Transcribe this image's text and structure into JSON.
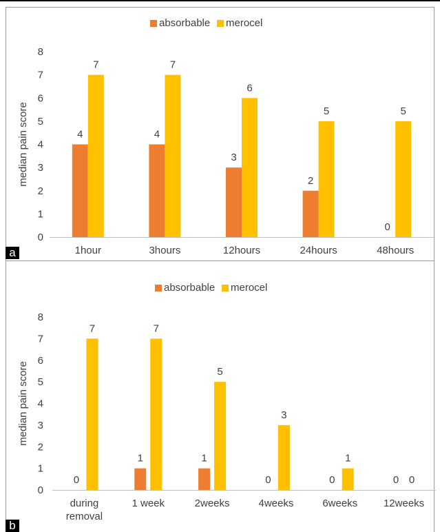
{
  "colors": {
    "absorbable": "#ED7D31",
    "merocel": "#FFC000",
    "axis_text": "#404040",
    "axis_line": "#bfbfbf"
  },
  "chart_data": [
    {
      "type": "bar",
      "panel_label": "a",
      "ylabel": "median pain score",
      "xlabel": "",
      "ylim": [
        0,
        8
      ],
      "yticks": [
        0,
        1,
        2,
        3,
        4,
        5,
        6,
        7,
        8
      ],
      "ytick_labels": [
        "0",
        "1",
        "2",
        "3",
        "4",
        "5",
        "6",
        "7",
        "8"
      ],
      "grid": false,
      "legend_position": "top",
      "categories": [
        "1hour",
        "3hours",
        "12hours",
        "24hours",
        "48hours"
      ],
      "series": [
        {
          "name": "absorbable",
          "values": [
            4,
            4,
            3,
            2,
            0
          ]
        },
        {
          "name": "merocel",
          "values": [
            7,
            7,
            6,
            5,
            5
          ]
        }
      ],
      "data_labels": [
        {
          "series": "absorbable",
          "labels": [
            "4",
            "4",
            "3",
            "2",
            "0"
          ]
        },
        {
          "series": "merocel",
          "labels": [
            "7",
            "7",
            "6",
            "5",
            "5"
          ]
        }
      ]
    },
    {
      "type": "bar",
      "panel_label": "b",
      "ylabel": "median pain score",
      "xlabel": "",
      "ylim": [
        0,
        8
      ],
      "yticks": [
        0,
        1,
        2,
        3,
        4,
        5,
        6,
        7,
        8
      ],
      "ytick_labels": [
        "0",
        "1",
        "2",
        "3",
        "4",
        "5",
        "6",
        "7",
        "8"
      ],
      "grid": false,
      "legend_position": "top",
      "categories": [
        "during removal",
        "1 week",
        "2weeks",
        "4weeks",
        "6weeks",
        "12weeks"
      ],
      "category_lines": [
        [
          "during",
          "removal"
        ],
        [
          "1 week"
        ],
        [
          "2weeks"
        ],
        [
          "4weeks"
        ],
        [
          "6weeks"
        ],
        [
          "12weeks"
        ]
      ],
      "series": [
        {
          "name": "absorbable",
          "values": [
            0,
            1,
            1,
            0,
            0,
            0
          ]
        },
        {
          "name": "merocel",
          "values": [
            7,
            7,
            5,
            3,
            1,
            0
          ]
        }
      ],
      "data_labels": [
        {
          "series": "absorbable",
          "labels": [
            "0",
            "1",
            "1",
            "0",
            "0",
            "0"
          ]
        },
        {
          "series": "merocel",
          "labels": [
            "7",
            "7",
            "5",
            "3",
            "1",
            "0"
          ]
        }
      ]
    }
  ]
}
